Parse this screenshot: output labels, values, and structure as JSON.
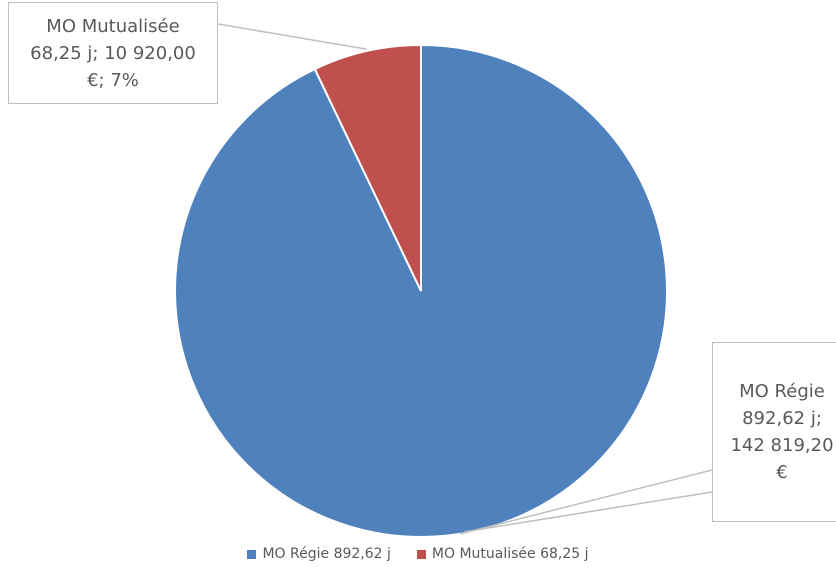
{
  "chart_data": {
    "type": "pie",
    "title": "",
    "slices": [
      {
        "name": "MO Régie",
        "legend_label": "MO Régie 892,62 j",
        "value": 142819.2,
        "days": 892.62,
        "color": "#4F81BD",
        "label_lines": [
          "MO Régie",
          "892,62 j;",
          "142 819,20",
          "€"
        ]
      },
      {
        "name": "MO Mutualisée",
        "legend_label": "MO Mutualisée 68,25 j",
        "value": 10920.0,
        "days": 68.25,
        "percent": 7,
        "color": "#C0504D",
        "label_lines": [
          "MO Mutualisée",
          "68,25 j; 10 920,00",
          "€; 7%"
        ]
      }
    ],
    "start_angle": "12 o'clock",
    "direction": "counter-clockwise for second slice",
    "legend_position": "bottom",
    "label_style": "callout boxes with leader lines"
  }
}
